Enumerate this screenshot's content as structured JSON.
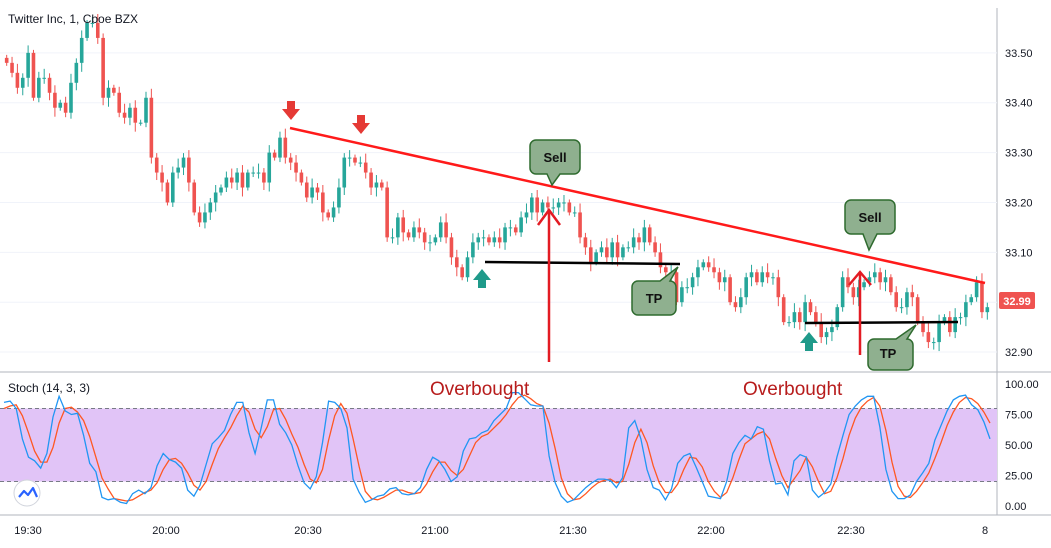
{
  "symbol_title": "Twitter Inc, 1, Cboe BZX",
  "oscillator_title": "Stoch (14, 3, 3)",
  "last_price": "32.99",
  "colors": {
    "up": "#26a69a",
    "down": "#ef5350",
    "trendline": "#ff1a1a",
    "support": "#000000",
    "stoch_k": "#2196f3",
    "stoch_d": "#ff5722",
    "overbought_band": "#e1c4f7",
    "label_bg": "#8fb08f",
    "buy_arrow": "#1f9a8a",
    "sell_arrow": "#e53935",
    "price_tag": "#ef5350"
  },
  "annotations": {
    "overbought_1": "Overbought",
    "overbought_2": "Overbought",
    "sell_1": "Sell",
    "sell_2": "Sell",
    "tp_1": "TP",
    "tp_2": "TP"
  },
  "chart_data": [
    {
      "type": "candlestick",
      "title": "Twitter Inc, 1, Cboe BZX",
      "x_ticks": [
        "19:30",
        "20:00",
        "20:30",
        "21:00",
        "21:30",
        "22:00",
        "22:30",
        "8"
      ],
      "y_ticks": [
        "33.50",
        "33.40",
        "33.30",
        "33.20",
        "33.10",
        "33.00",
        "32.90"
      ],
      "ylim": [
        32.86,
        33.59
      ],
      "series": [
        {
          "name": "price",
          "close": [
            33.48,
            33.46,
            33.43,
            33.45,
            33.5,
            33.41,
            33.45,
            33.45,
            33.42,
            33.39,
            33.4,
            33.38,
            33.44,
            33.48,
            33.53,
            33.56,
            33.56,
            33.53,
            33.41,
            33.43,
            33.42,
            33.38,
            33.37,
            33.39,
            33.36,
            33.36,
            33.41,
            33.29,
            33.26,
            33.24,
            33.2,
            33.26,
            33.27,
            33.29,
            33.24,
            33.18,
            33.16,
            33.18,
            33.2,
            33.22,
            33.23,
            33.25,
            33.24,
            33.26,
            33.23,
            33.26,
            33.26,
            33.26,
            33.24,
            33.3,
            33.29,
            33.33,
            33.29,
            33.28,
            33.26,
            33.24,
            33.21,
            33.23,
            33.22,
            33.18,
            33.17,
            33.19,
            33.23,
            33.29,
            33.29,
            33.28,
            33.28,
            33.26,
            33.23,
            33.24,
            33.23,
            33.13,
            33.13,
            33.17,
            33.14,
            33.13,
            33.15,
            33.14,
            33.12,
            33.12,
            33.13,
            33.16,
            33.13,
            33.09,
            33.07,
            33.05,
            33.09,
            33.12,
            33.13,
            33.13,
            33.12,
            33.13,
            33.12,
            33.15,
            33.15,
            33.14,
            33.17,
            33.18,
            33.21,
            33.18,
            33.2,
            33.19,
            33.19,
            33.2,
            33.2,
            33.18,
            33.18,
            33.13,
            33.11,
            33.08,
            33.1,
            33.11,
            33.09,
            33.12,
            33.09,
            33.11,
            33.11,
            33.13,
            33.12,
            33.15,
            33.12,
            33.1,
            33.07,
            33.06,
            33.06,
            33.0,
            33.03,
            33.03,
            33.05,
            33.07,
            33.08,
            33.07,
            33.06,
            33.04,
            33.05,
            33.0,
            32.99,
            33.01,
            33.05,
            33.06,
            33.04,
            33.06,
            33.05,
            33.05,
            33.01,
            32.96,
            32.96,
            32.98,
            32.96,
            33.0,
            32.98,
            32.96,
            32.93,
            32.94,
            32.95,
            32.99,
            33.05,
            33.03,
            33.01,
            33.03,
            33.04,
            33.05,
            33.06,
            33.04,
            33.05,
            33.02,
            32.99,
            32.99,
            33.02,
            33.01,
            32.96,
            32.94,
            32.92,
            32.92,
            32.96,
            32.97,
            32.94,
            32.97,
            32.97,
            33.0,
            33.01,
            33.04,
            32.98,
            32.99
          ]
        }
      ]
    },
    {
      "type": "line",
      "title": "Stoch (14, 3, 3)",
      "y_ticks": [
        "100.00",
        "75.00",
        "50.00",
        "25.00",
        "0.00"
      ],
      "ylim": [
        -5,
        105
      ],
      "bands": [
        20,
        80
      ],
      "series": [
        {
          "name": "%K",
          "values": [
            85,
            86,
            80,
            55,
            40,
            37,
            31,
            43,
            73,
            90,
            78,
            75,
            76,
            58,
            35,
            28,
            7,
            5,
            6,
            3,
            2,
            10,
            13,
            10,
            15,
            33,
            43,
            38,
            36,
            31,
            13,
            8,
            17,
            34,
            51,
            56,
            62,
            75,
            85,
            85,
            60,
            43,
            64,
            87,
            87,
            67,
            60,
            50,
            33,
            19,
            14,
            24,
            52,
            86,
            85,
            80,
            64,
            22,
            11,
            3,
            5,
            8,
            9,
            14,
            15,
            10,
            9,
            10,
            15,
            30,
            40,
            37,
            30,
            20,
            24,
            45,
            55,
            56,
            60,
            62,
            70,
            75,
            80,
            93,
            93,
            88,
            83,
            82,
            82,
            41,
            19,
            8,
            3,
            5,
            10,
            15,
            19,
            22,
            22,
            21,
            15,
            23,
            64,
            70,
            55,
            30,
            15,
            13,
            5,
            14,
            35,
            41,
            43,
            32,
            20,
            8,
            7,
            6,
            20,
            43,
            52,
            58,
            55,
            65,
            63,
            37,
            18,
            19,
            9,
            37,
            42,
            40,
            13,
            7,
            11,
            18,
            40,
            58,
            75,
            82,
            87,
            90,
            90,
            65,
            30,
            12,
            6,
            6,
            9,
            20,
            27,
            35,
            54,
            66,
            78,
            87,
            90,
            91,
            83,
            79,
            69,
            55
          ]
        },
        {
          "name": "%D",
          "values": [
            80,
            82,
            83,
            74,
            60,
            45,
            36,
            36,
            48,
            68,
            80,
            81,
            77,
            70,
            57,
            40,
            23,
            14,
            6,
            5,
            4,
            5,
            8,
            11,
            13,
            19,
            30,
            38,
            39,
            35,
            27,
            17,
            13,
            20,
            34,
            47,
            56,
            64,
            74,
            82,
            77,
            63,
            56,
            65,
            79,
            80,
            71,
            59,
            48,
            34,
            22,
            19,
            30,
            54,
            74,
            84,
            76,
            55,
            32,
            12,
            6,
            5,
            7,
            10,
            13,
            13,
            11,
            10,
            11,
            18,
            28,
            36,
            36,
            29,
            25,
            30,
            41,
            52,
            57,
            59,
            64,
            69,
            75,
            83,
            89,
            91,
            88,
            84,
            82,
            68,
            47,
            23,
            10,
            5,
            6,
            10,
            15,
            19,
            21,
            22,
            19,
            20,
            34,
            52,
            63,
            52,
            33,
            19,
            11,
            11,
            18,
            30,
            40,
            39,
            32,
            20,
            12,
            7,
            11,
            23,
            38,
            51,
            55,
            59,
            61,
            55,
            39,
            25,
            15,
            22,
            29,
            40,
            32,
            20,
            10,
            12,
            23,
            39,
            58,
            72,
            81,
            86,
            89,
            82,
            62,
            36,
            16,
            8,
            7,
            12,
            19,
            27,
            39,
            52,
            66,
            77,
            85,
            89,
            88,
            84,
            77,
            68
          ]
        }
      ]
    }
  ]
}
